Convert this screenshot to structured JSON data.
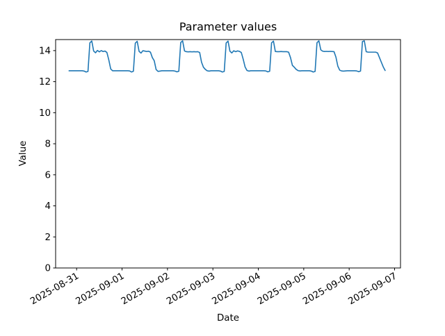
{
  "figure": {
    "background": "#ffffff",
    "text_color": "#000000"
  },
  "chart_data": {
    "type": "line",
    "title": "Parameter values",
    "xlabel": "Date",
    "ylabel": "Value",
    "grid": false,
    "legend": null,
    "ylim": [
      0,
      14.71
    ],
    "y_ticks": [
      0,
      2,
      4,
      6,
      8,
      10,
      12,
      14
    ],
    "x_tick_labels": [
      "2025-08-31",
      "2025-09-01",
      "2025-09-02",
      "2025-09-03",
      "2025-09-04",
      "2025-09-05",
      "2025-09-06",
      "2025-09-07"
    ],
    "x_tick_rotation_deg": 30,
    "x_start": "2025-08-30 20:00",
    "x_interval_hours": 1,
    "series": [
      {
        "name": "parameter",
        "color": "#1f77b4",
        "values": [
          12.7,
          12.7,
          12.7,
          12.7,
          12.7,
          12.7,
          12.7,
          12.7,
          12.68,
          12.62,
          12.66,
          14.5,
          14.62,
          13.97,
          13.86,
          14.01,
          13.92,
          14.0,
          13.94,
          13.97,
          13.88,
          13.4,
          12.82,
          12.7,
          12.7,
          12.7,
          12.7,
          12.7,
          12.7,
          12.7,
          12.7,
          12.7,
          12.69,
          12.62,
          12.67,
          14.48,
          14.6,
          13.95,
          13.84,
          13.99,
          13.97,
          13.94,
          13.96,
          13.9,
          13.55,
          13.35,
          12.78,
          12.66,
          12.68,
          12.7,
          12.7,
          12.7,
          12.7,
          12.7,
          12.7,
          12.7,
          12.68,
          12.63,
          12.67,
          14.52,
          14.63,
          13.98,
          13.93,
          13.92,
          13.93,
          13.92,
          13.93,
          13.92,
          13.93,
          13.88,
          13.25,
          12.93,
          12.79,
          12.7,
          12.68,
          12.7,
          12.7,
          12.7,
          12.7,
          12.7,
          12.68,
          12.62,
          12.66,
          14.49,
          14.61,
          13.96,
          13.85,
          13.99,
          13.93,
          13.98,
          13.95,
          13.88,
          13.45,
          12.95,
          12.72,
          12.68,
          12.7,
          12.7,
          12.7,
          12.7,
          12.7,
          12.7,
          12.7,
          12.7,
          12.69,
          12.63,
          12.67,
          14.5,
          14.61,
          13.94,
          13.93,
          13.93,
          13.94,
          13.93,
          13.93,
          13.93,
          13.9,
          13.55,
          13.05,
          12.93,
          12.79,
          12.71,
          12.69,
          12.7,
          12.7,
          12.7,
          12.7,
          12.7,
          12.68,
          12.62,
          12.66,
          14.51,
          14.63,
          14.05,
          13.96,
          13.94,
          13.95,
          13.94,
          13.95,
          13.94,
          13.93,
          13.58,
          13.0,
          12.74,
          12.69,
          12.68,
          12.69,
          12.7,
          12.7,
          12.7,
          12.7,
          12.7,
          12.69,
          12.64,
          12.68,
          14.58,
          14.63,
          13.93,
          13.9,
          13.9,
          13.9,
          13.9,
          13.9,
          13.85,
          13.55,
          13.25,
          12.95,
          12.72
        ]
      }
    ]
  }
}
